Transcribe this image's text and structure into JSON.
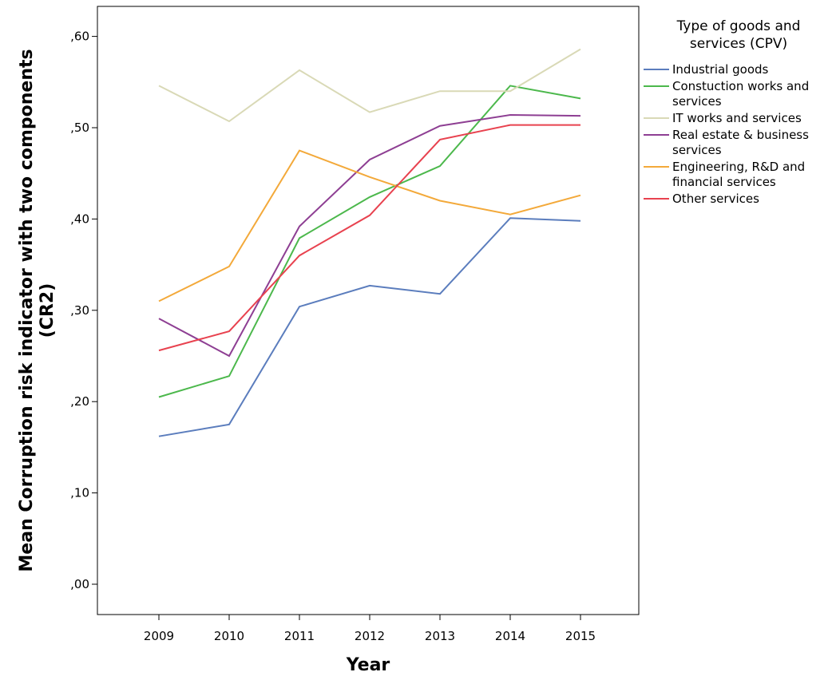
{
  "chart_data": {
    "type": "line",
    "xlabel": "Year",
    "ylabel_lines": [
      "Mean Corruption risk indicator with two components",
      "(CR2)"
    ],
    "categories": [
      "2009",
      "2010",
      "2011",
      "2012",
      "2013",
      "2014",
      "2015"
    ],
    "ylim": [
      0,
      0.64
    ],
    "yticks": [
      0,
      0.1,
      0.2,
      0.3,
      0.4,
      0.5,
      0.6
    ],
    "ytick_labels": [
      ",00",
      ",10",
      ",20",
      ",30",
      ",40",
      ",50",
      ",60"
    ],
    "grid": false,
    "legend": {
      "title_lines": [
        "Type of goods and",
        "services (CPV)"
      ],
      "placement": "right"
    },
    "series": [
      {
        "name": "Industrial goods",
        "label_lines": [
          "Industrial goods"
        ],
        "color": "#5b7dbd",
        "values": [
          0.162,
          0.175,
          0.304,
          0.327,
          0.318,
          0.401,
          0.398
        ]
      },
      {
        "name": "Constuction works and services",
        "label_lines": [
          "Constuction works and",
          "services"
        ],
        "color": "#4cb84c",
        "values": [
          0.205,
          0.228,
          0.379,
          0.424,
          0.458,
          0.546,
          0.532
        ]
      },
      {
        "name": "IT works and services",
        "label_lines": [
          "IT works and services"
        ],
        "color": "#d9d9b6",
        "values": [
          0.546,
          0.507,
          0.563,
          0.517,
          0.54,
          0.54,
          0.586
        ]
      },
      {
        "name": "Real estate & business services",
        "label_lines": [
          "Real estate & business",
          "services"
        ],
        "color": "#8e3f93",
        "values": [
          0.291,
          0.25,
          0.392,
          0.465,
          0.502,
          0.514,
          0.513
        ]
      },
      {
        "name": "Engineering, R&D and financial services",
        "label_lines": [
          "Engineering, R&D and",
          "financial services"
        ],
        "color": "#f3a93a",
        "values": [
          0.31,
          0.348,
          0.475,
          0.446,
          0.42,
          0.405,
          0.426
        ]
      },
      {
        "name": "Other services",
        "label_lines": [
          "Other services"
        ],
        "color": "#e8424f",
        "values": [
          0.256,
          0.277,
          0.36,
          0.404,
          0.487,
          0.503,
          0.503
        ]
      }
    ]
  }
}
